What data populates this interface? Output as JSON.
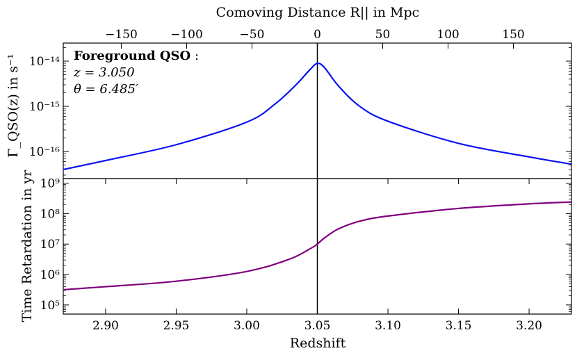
{
  "chart_data": [
    {
      "id": "top",
      "type": "line",
      "xlabel": "Redshift",
      "ylabel": "Γ_QSO(z) in s⁻¹",
      "xlim": [
        2.87,
        3.23
      ],
      "ylim_log10": [
        -16.6,
        -13.6
      ],
      "yscale": "log",
      "ytick_exponents": [
        -16,
        -15,
        -14
      ],
      "top_axis": {
        "label": "Comoving Distance R|| in Mpc",
        "ticks": [
          -150,
          -100,
          -50,
          0,
          50,
          100,
          150
        ],
        "tick_labels": [
          "−150",
          "−100",
          "−50",
          "0",
          "50",
          "100",
          "150"
        ],
        "zero_at_redshift": 3.05,
        "mpc_per_unit_z": 1080
      },
      "vertical_line_at": 3.05,
      "annotation": {
        "title": "Foreground QSO",
        "colon": ":",
        "z_label": "z = 3.050",
        "theta_label": "θ = 6.485′"
      },
      "series": [
        {
          "name": "Gamma_QSO",
          "color": "#0a14f0",
          "x": [
            2.87,
            2.9,
            2.95,
            3.0,
            3.02,
            3.035,
            3.045,
            3.05,
            3.055,
            3.065,
            3.08,
            3.1,
            3.15,
            3.2,
            3.23
          ],
          "log10_y": [
            -16.4,
            -16.2,
            -15.85,
            -15.35,
            -14.95,
            -14.52,
            -14.18,
            -14.05,
            -14.14,
            -14.55,
            -15.0,
            -15.33,
            -15.82,
            -16.12,
            -16.28
          ]
        }
      ]
    },
    {
      "id": "bottom",
      "type": "line",
      "xlabel": "Redshift",
      "ylabel": "Time Retardation in yr",
      "xlim": [
        2.87,
        3.23
      ],
      "ylim_log10": [
        4.7,
        9.15
      ],
      "yscale": "log",
      "ytick_exponents": [
        5,
        6,
        7,
        8,
        9
      ],
      "xticks": [
        2.9,
        2.95,
        3.0,
        3.05,
        3.1,
        3.15,
        3.2
      ],
      "xtick_labels": [
        "2.90",
        "2.95",
        "3.00",
        "3.05",
        "3.10",
        "3.15",
        "3.20"
      ],
      "vertical_line_at": 3.05,
      "series": [
        {
          "name": "time_retardation",
          "color": "#800080",
          "x": [
            2.87,
            2.9,
            2.95,
            3.0,
            3.03,
            3.045,
            3.05,
            3.055,
            3.065,
            3.08,
            3.1,
            3.15,
            3.2,
            3.23
          ],
          "log10_y": [
            5.5,
            5.6,
            5.78,
            6.1,
            6.5,
            6.85,
            7.0,
            7.2,
            7.5,
            7.75,
            7.92,
            8.17,
            8.32,
            8.38
          ]
        }
      ]
    }
  ]
}
